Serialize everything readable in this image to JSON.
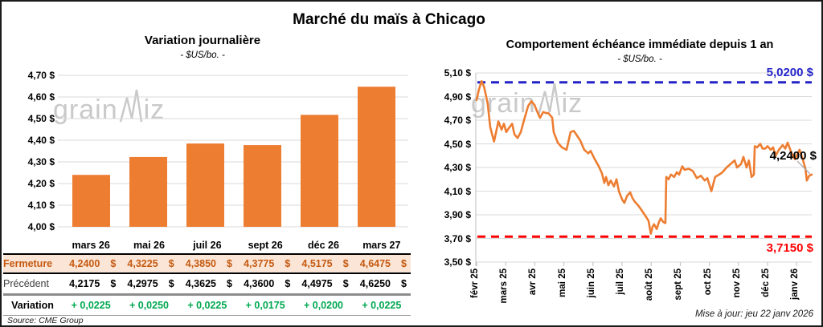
{
  "page_title": "Marché du maïs à Chicago",
  "source": "Source: CME Group",
  "updated": "Mise à jour: jeu 22 janv 2026",
  "watermark": {
    "left": "grain",
    "right": "iz"
  },
  "colors": {
    "orange": "#ED7D31",
    "dark_orange": "#C55A11",
    "peach": "#FBE5D6",
    "green": "#00A850",
    "blue": "#2323C8",
    "red": "#FF0000",
    "gridline": "#D9D9D9",
    "axis": "#BFBFBF",
    "watermark": "#C9C9C9"
  },
  "chart_data": [
    {
      "type": "bar",
      "title": "Variation  journalière",
      "subtitle": "- $US/bo. -",
      "categories": [
        "mars 26",
        "mai 26",
        "juil 26",
        "sept 26",
        "déc 26",
        "mars 27"
      ],
      "values": [
        4.24,
        4.3225,
        4.385,
        4.3775,
        4.5175,
        4.6475
      ],
      "ylim": [
        4.0,
        4.7
      ],
      "ytick_labels": [
        "4,70 $",
        "4,60 $",
        "4,50 $",
        "4,40 $",
        "4,30 $",
        "4,20 $",
        "4,10 $",
        "4,00 $"
      ],
      "grid": true,
      "bar_color": "#ED7D31"
    },
    {
      "type": "line",
      "title": "Comportement  échéance  immédiate  depuis 1 an",
      "subtitle": "- $US/bo. -",
      "x_labels": [
        "févr 25",
        "mars 25",
        "avr 25",
        "mai 25",
        "juin 25",
        "juil 25",
        "août 25",
        "sept 25",
        "oct 25",
        "nov 25",
        "déc 25",
        "janv 26"
      ],
      "ylim": [
        3.5,
        5.1
      ],
      "ytick_labels": [
        "5,10 $",
        "4,90 $",
        "4,70 $",
        "4,50 $",
        "4,30 $",
        "4,10 $",
        "3,90 $",
        "3,70 $",
        "3,50 $"
      ],
      "grid": true,
      "line_color": "#ED7D31",
      "ref_lines": [
        {
          "value": 5.02,
          "label": "5,0200 $",
          "color": "#2323C8"
        },
        {
          "value": 3.715,
          "label": "3,7150 $",
          "color": "#FF0000"
        }
      ],
      "last_label": "4,2400 $",
      "last_value": 4.24,
      "points": [
        [
          0,
          4.87
        ],
        [
          0.08,
          4.96
        ],
        [
          0.17,
          5.03
        ],
        [
          0.26,
          4.98
        ],
        [
          0.38,
          4.84
        ],
        [
          0.47,
          4.64
        ],
        [
          0.6,
          4.52
        ],
        [
          0.75,
          4.69
        ],
        [
          0.86,
          4.62
        ],
        [
          0.94,
          4.67
        ],
        [
          1.02,
          4.6
        ],
        [
          1.1,
          4.63
        ],
        [
          1.22,
          4.67
        ],
        [
          1.3,
          4.58
        ],
        [
          1.41,
          4.55
        ],
        [
          1.52,
          4.6
        ],
        [
          1.63,
          4.7
        ],
        [
          1.77,
          4.82
        ],
        [
          1.88,
          4.86
        ],
        [
          1.99,
          4.83
        ],
        [
          2.07,
          4.78
        ],
        [
          2.18,
          4.72
        ],
        [
          2.29,
          4.77
        ],
        [
          2.38,
          4.76
        ],
        [
          2.46,
          4.76
        ],
        [
          2.54,
          4.74
        ],
        [
          2.6,
          4.72
        ],
        [
          2.65,
          4.6
        ],
        [
          2.79,
          4.51
        ],
        [
          2.93,
          4.47
        ],
        [
          3.09,
          4.45
        ],
        [
          3.23,
          4.6
        ],
        [
          3.34,
          4.61
        ],
        [
          3.48,
          4.56
        ],
        [
          3.56,
          4.53
        ],
        [
          3.7,
          4.45
        ],
        [
          3.84,
          4.42
        ],
        [
          3.92,
          4.44
        ],
        [
          4.06,
          4.37
        ],
        [
          4.2,
          4.31
        ],
        [
          4.31,
          4.25
        ],
        [
          4.39,
          4.17
        ],
        [
          4.45,
          4.22
        ],
        [
          4.53,
          4.15
        ],
        [
          4.61,
          4.19
        ],
        [
          4.72,
          4.14
        ],
        [
          4.81,
          4.2
        ],
        [
          4.89,
          4.1
        ],
        [
          5,
          4.03
        ],
        [
          5.08,
          4.0
        ],
        [
          5.17,
          4.06
        ],
        [
          5.28,
          4.09
        ],
        [
          5.36,
          4.04
        ],
        [
          5.44,
          4.01
        ],
        [
          5.55,
          3.98
        ],
        [
          5.64,
          3.95
        ],
        [
          5.72,
          3.92
        ],
        [
          5.83,
          3.88
        ],
        [
          5.91,
          3.85
        ],
        [
          5.99,
          3.74
        ],
        [
          6.05,
          3.8
        ],
        [
          6.1,
          3.82
        ],
        [
          6.19,
          3.78
        ],
        [
          6.27,
          3.84
        ],
        [
          6.33,
          3.87
        ],
        [
          6.41,
          3.84
        ],
        [
          6.49,
          3.83
        ],
        [
          6.52,
          4.22
        ],
        [
          6.6,
          4.2
        ],
        [
          6.68,
          4.24
        ],
        [
          6.79,
          4.22
        ],
        [
          6.88,
          4.26
        ],
        [
          6.96,
          4.24
        ],
        [
          7.07,
          4.31
        ],
        [
          7.15,
          4.28
        ],
        [
          7.29,
          4.29
        ],
        [
          7.43,
          4.27
        ],
        [
          7.57,
          4.21
        ],
        [
          7.71,
          4.23
        ],
        [
          7.84,
          4.19
        ],
        [
          7.93,
          4.21
        ],
        [
          8.07,
          4.1
        ],
        [
          8.2,
          4.22
        ],
        [
          8.34,
          4.24
        ],
        [
          8.45,
          4.26
        ],
        [
          8.59,
          4.3
        ],
        [
          8.73,
          4.33
        ],
        [
          8.87,
          4.36
        ],
        [
          8.95,
          4.3
        ],
        [
          9.09,
          4.33
        ],
        [
          9.17,
          4.39
        ],
        [
          9.28,
          4.3
        ],
        [
          9.36,
          4.36
        ],
        [
          9.45,
          4.22
        ],
        [
          9.53,
          4.24
        ],
        [
          9.56,
          4.48
        ],
        [
          9.64,
          4.47
        ],
        [
          9.75,
          4.5
        ],
        [
          9.83,
          4.46
        ],
        [
          9.92,
          4.46
        ],
        [
          10,
          4.48
        ],
        [
          10.11,
          4.45
        ],
        [
          10.19,
          4.47
        ],
        [
          10.28,
          4.4
        ],
        [
          10.39,
          4.45
        ],
        [
          10.52,
          4.49
        ],
        [
          10.61,
          4.46
        ],
        [
          10.69,
          4.51
        ],
        [
          10.83,
          4.42
        ],
        [
          10.94,
          4.37
        ],
        [
          11.02,
          4.41
        ],
        [
          11.1,
          4.45
        ],
        [
          11.21,
          4.37
        ],
        [
          11.3,
          4.29
        ],
        [
          11.35,
          4.19
        ],
        [
          11.43,
          4.23
        ],
        [
          11.52,
          4.24
        ]
      ]
    }
  ],
  "table": {
    "col_headers": [
      "mars 26",
      "mai 26",
      "juil 26",
      "sept 26",
      "déc 26",
      "mars 27"
    ],
    "rows": [
      {
        "label": "Fermeture",
        "values": [
          "4,2400",
          "4,3225",
          "4,3850",
          "4,3775",
          "4,5175",
          "4,6475"
        ],
        "suffix": "$"
      },
      {
        "label": "Précédent",
        "values": [
          "4,2175",
          "4,2975",
          "4,3625",
          "4,3600",
          "4,4975",
          "4,6250"
        ],
        "suffix": "$"
      },
      {
        "label": "Variation",
        "values": [
          "+ 0,0225",
          "+ 0,0250",
          "+ 0,0225",
          "+ 0,0175",
          "+ 0,0200",
          "+ 0,0225"
        ]
      }
    ]
  }
}
